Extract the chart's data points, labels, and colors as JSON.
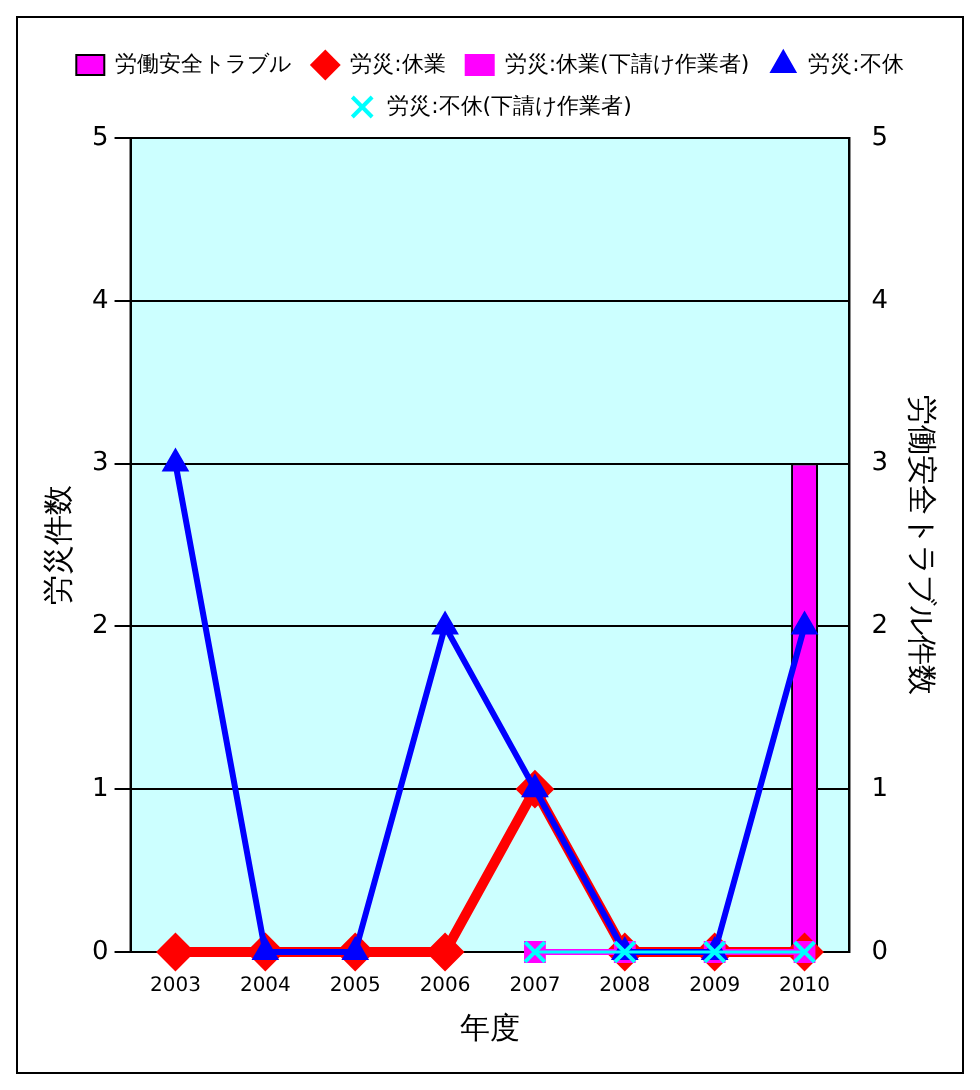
{
  "chart_data": {
    "type": "line",
    "xlabel": "年度",
    "ylabel": "労災件数",
    "y2label": "労働安全トラブル件数",
    "categories": [
      "2003",
      "2004",
      "2005",
      "2006",
      "2007",
      "2008",
      "2009",
      "2010"
    ],
    "series": [
      {
        "name": "労働安全トラブル",
        "type": "bar",
        "axis": "y2",
        "color": "#ff00ff",
        "values": [
          null,
          null,
          null,
          null,
          null,
          null,
          null,
          3
        ]
      },
      {
        "name": "労災:休業",
        "color": "#ff0000",
        "marker": "diamond",
        "values": [
          0,
          0,
          0,
          0,
          1,
          0,
          0,
          0
        ]
      },
      {
        "name": "労災:休業(下請け作業者)",
        "color": "#ff00ff",
        "marker": "square",
        "values": [
          null,
          null,
          null,
          null,
          0,
          0,
          0,
          0
        ]
      },
      {
        "name": "労災:不休",
        "color": "#0000ff",
        "marker": "triangle",
        "values": [
          3,
          0,
          0,
          2,
          1,
          0,
          0,
          2
        ]
      },
      {
        "name": "労災:不休(下請け作業者)",
        "color": "#00ffff",
        "marker": "cross",
        "values": [
          null,
          null,
          null,
          null,
          0,
          0,
          0,
          0
        ]
      }
    ],
    "ylim": [
      0,
      5
    ],
    "yticks": [
      0,
      1,
      2,
      3,
      4,
      5
    ],
    "y2lim": [
      0,
      5
    ],
    "y2ticks": [
      0,
      1,
      2,
      3,
      4,
      5
    ],
    "grid": "y",
    "legend": "top"
  }
}
